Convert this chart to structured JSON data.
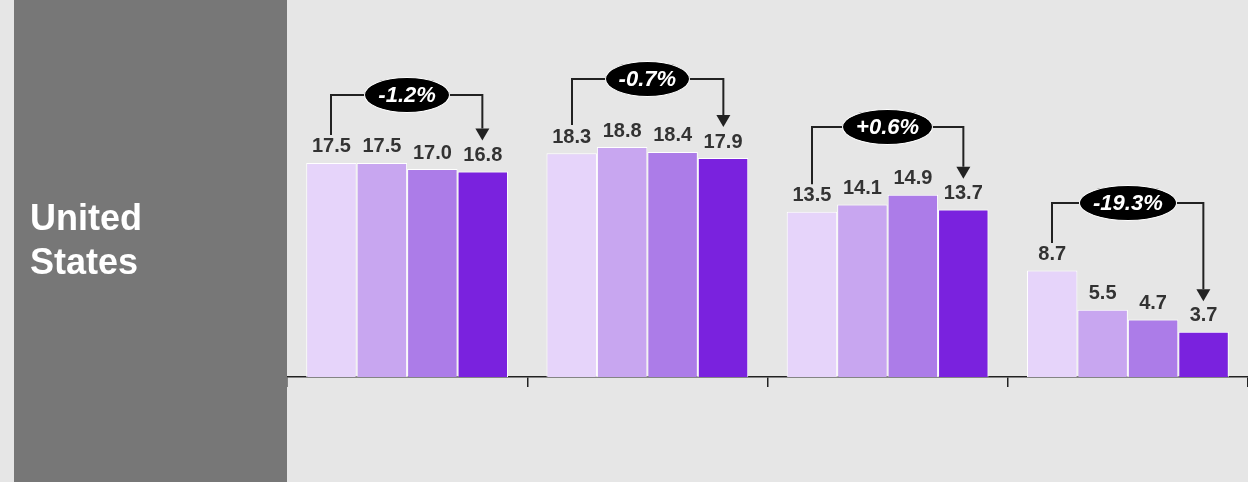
{
  "chart_data": {
    "type": "bar",
    "title": "United States",
    "categories": [
      null,
      null,
      null,
      null
    ],
    "series": [
      {
        "color": "#e6d4fa",
        "values": [
          17.5,
          18.3,
          13.5,
          8.7
        ],
        "value_labels": [
          "17.5",
          "18.3",
          "13.5",
          "8.7"
        ]
      },
      {
        "color": "#c8a6f0",
        "values": [
          17.5,
          18.8,
          14.1,
          5.5
        ],
        "value_labels": [
          "17.5",
          "18.8",
          "14.1",
          "5.5"
        ]
      },
      {
        "color": "#ac7ce8",
        "values": [
          17.0,
          18.4,
          14.9,
          4.7
        ],
        "value_labels": [
          "17.0",
          "18.4",
          "14.9",
          "4.7"
        ]
      },
      {
        "color": "#7a22de",
        "values": [
          16.8,
          17.9,
          13.7,
          3.7
        ],
        "value_labels": [
          "16.8",
          "17.9",
          "13.7",
          "3.7"
        ]
      }
    ],
    "grid": false,
    "legend": false,
    "annotations": [
      "-1.2%",
      "-0.7%",
      "+0.6%",
      "-19.3%"
    ]
  }
}
